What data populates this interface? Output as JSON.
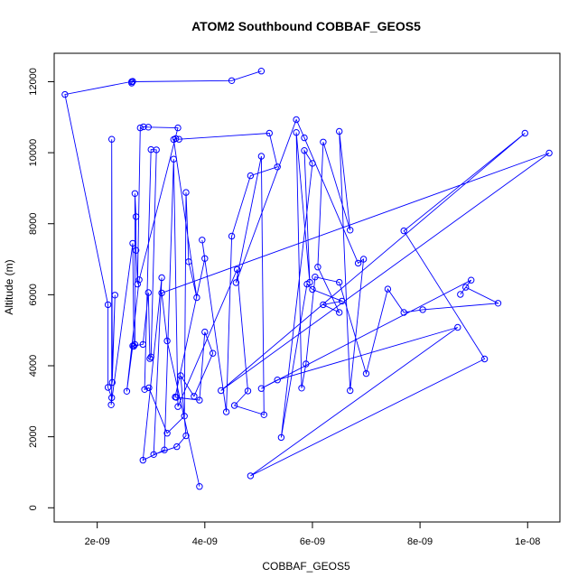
{
  "chart_data": {
    "type": "line",
    "title": "ATOM2 Southbound COBBAF_GEOS5",
    "xlabel": "COBBAF_GEOS5",
    "ylabel": "Altitude (m)",
    "xlim": [
      1.2e-09,
      1.06e-08
    ],
    "ylim": [
      -400,
      12800
    ],
    "x_ticks": [
      2e-09,
      4e-09,
      6e-09,
      8e-09,
      1e-08
    ],
    "x_tick_labels": [
      "2e-09",
      "4e-09",
      "6e-09",
      "8e-09",
      "1e-08"
    ],
    "y_ticks": [
      0,
      2000,
      4000,
      6000,
      8000,
      10000,
      12000
    ],
    "y_tick_labels": [
      "0",
      "2000",
      "4000",
      "6000",
      "8000",
      "10000",
      "12000"
    ],
    "grid": false,
    "colors": {
      "series": "#0000ff",
      "axis": "#000000",
      "background": "#ffffff"
    },
    "series": [
      {
        "points": [
          [
            5.05e-09,
            12300
          ],
          [
            4.5e-09,
            12030
          ],
          [
            2.64e-09,
            12000
          ],
          [
            2.64e-09,
            11960
          ],
          [
            2.66e-09,
            12010
          ],
          [
            1.4e-09,
            11640
          ],
          [
            2.2e-09,
            5720
          ],
          [
            2.2e-09,
            3390
          ],
          [
            2.27e-09,
            3100
          ],
          [
            2.27e-09,
            10380
          ],
          [
            2.28e-09,
            3530
          ],
          [
            2.33e-09,
            5990
          ],
          [
            2.26e-09,
            2900
          ],
          [
            2.66e-09,
            7450
          ],
          [
            2.68e-09,
            4550
          ],
          [
            2.7e-09,
            4600
          ],
          [
            2.7e-09,
            8850
          ],
          [
            2.72e-09,
            8200
          ],
          [
            2.72e-09,
            7250
          ],
          [
            2.75e-09,
            6300
          ],
          [
            2.8e-09,
            10700
          ],
          [
            2.86e-09,
            10730
          ],
          [
            2.95e-09,
            10720
          ],
          [
            3.5e-09,
            10700
          ],
          [
            2.78e-09,
            6420
          ],
          [
            2.55e-09,
            3280
          ],
          [
            2.66e-09,
            4560
          ],
          [
            2.85e-09,
            4600
          ],
          [
            2.95e-09,
            6060
          ],
          [
            2.98e-09,
            4200
          ],
          [
            3e-09,
            4250
          ],
          [
            3.1e-09,
            10080
          ],
          [
            3e-09,
            10090
          ],
          [
            2.88e-09,
            3330
          ],
          [
            2.96e-09,
            3380
          ],
          [
            3.3e-09,
            2100
          ],
          [
            3.62e-09,
            2580
          ],
          [
            3.65e-09,
            8880
          ],
          [
            3.7e-09,
            6930
          ],
          [
            3.85e-09,
            5920
          ],
          [
            3.42e-09,
            10370
          ],
          [
            3.46e-09,
            10400
          ],
          [
            3.52e-09,
            10380
          ],
          [
            5.2e-09,
            10550
          ],
          [
            5.35e-09,
            9600
          ],
          [
            4.85e-09,
            9350
          ],
          [
            4.5e-09,
            7650
          ],
          [
            4.4e-09,
            2700
          ],
          [
            3.95e-09,
            7540
          ],
          [
            4e-09,
            7020
          ],
          [
            3.45e-09,
            3120
          ],
          [
            3.47e-09,
            3110
          ],
          [
            3.9e-09,
            3030
          ],
          [
            4e-09,
            4950
          ],
          [
            4.15e-09,
            4350
          ],
          [
            3.8e-09,
            3140
          ],
          [
            3.55e-09,
            3720
          ],
          [
            3.65e-09,
            2030
          ],
          [
            3.48e-09,
            1720
          ],
          [
            3.05e-09,
            1500
          ],
          [
            3.2e-09,
            6480
          ],
          [
            2.85e-09,
            1340
          ],
          [
            3.25e-09,
            1630
          ],
          [
            3.42e-09,
            9820
          ],
          [
            3.5e-09,
            2850
          ],
          [
            4.6e-09,
            6710
          ],
          [
            4.8e-09,
            3290
          ],
          [
            4.55e-09,
            2880
          ],
          [
            5.1e-09,
            2620
          ],
          [
            5.05e-09,
            9900
          ],
          [
            4.58e-09,
            6340
          ],
          [
            5.7e-09,
            10930
          ],
          [
            5.85e-09,
            10420
          ],
          [
            6.85e-09,
            6890
          ],
          [
            6.95e-09,
            7000
          ],
          [
            6.7e-09,
            3300
          ],
          [
            6.5e-09,
            10600
          ],
          [
            6.7e-09,
            7820
          ],
          [
            6.2e-09,
            10300
          ],
          [
            6.1e-09,
            6780
          ],
          [
            6.5e-09,
            5500
          ],
          [
            6.2e-09,
            5720
          ],
          [
            6.55e-09,
            5820
          ],
          [
            6e-09,
            6150
          ],
          [
            5.9e-09,
            6300
          ],
          [
            5.42e-09,
            1980
          ],
          [
            6e-09,
            9700
          ],
          [
            5.85e-09,
            10060
          ],
          [
            5.95e-09,
            6350
          ],
          [
            5.7e-09,
            10570
          ],
          [
            5.8e-09,
            3370
          ],
          [
            5.88e-09,
            4050
          ],
          [
            6.05e-09,
            6500
          ],
          [
            6.5e-09,
            6350
          ],
          [
            7e-09,
            3780
          ],
          [
            7.4e-09,
            6160
          ],
          [
            7.7e-09,
            5500
          ],
          [
            8.05e-09,
            5580
          ],
          [
            9.45e-09,
            5760
          ],
          [
            8.85e-09,
            6210
          ],
          [
            8.75e-09,
            6010
          ],
          [
            8.95e-09,
            6410
          ],
          [
            5.05e-09,
            3360
          ],
          [
            5.35e-09,
            3600
          ],
          [
            8.7e-09,
            5080
          ],
          [
            4.85e-09,
            900
          ],
          [
            9.2e-09,
            4190
          ],
          [
            7.7e-09,
            7800
          ],
          [
            9.95e-09,
            10550
          ],
          [
            4.3e-09,
            3300
          ],
          [
            1.04e-08,
            9990
          ],
          [
            3.2e-09,
            6050
          ],
          [
            3.3e-09,
            4700
          ],
          [
            3.9e-09,
            600
          ]
        ]
      }
    ]
  }
}
